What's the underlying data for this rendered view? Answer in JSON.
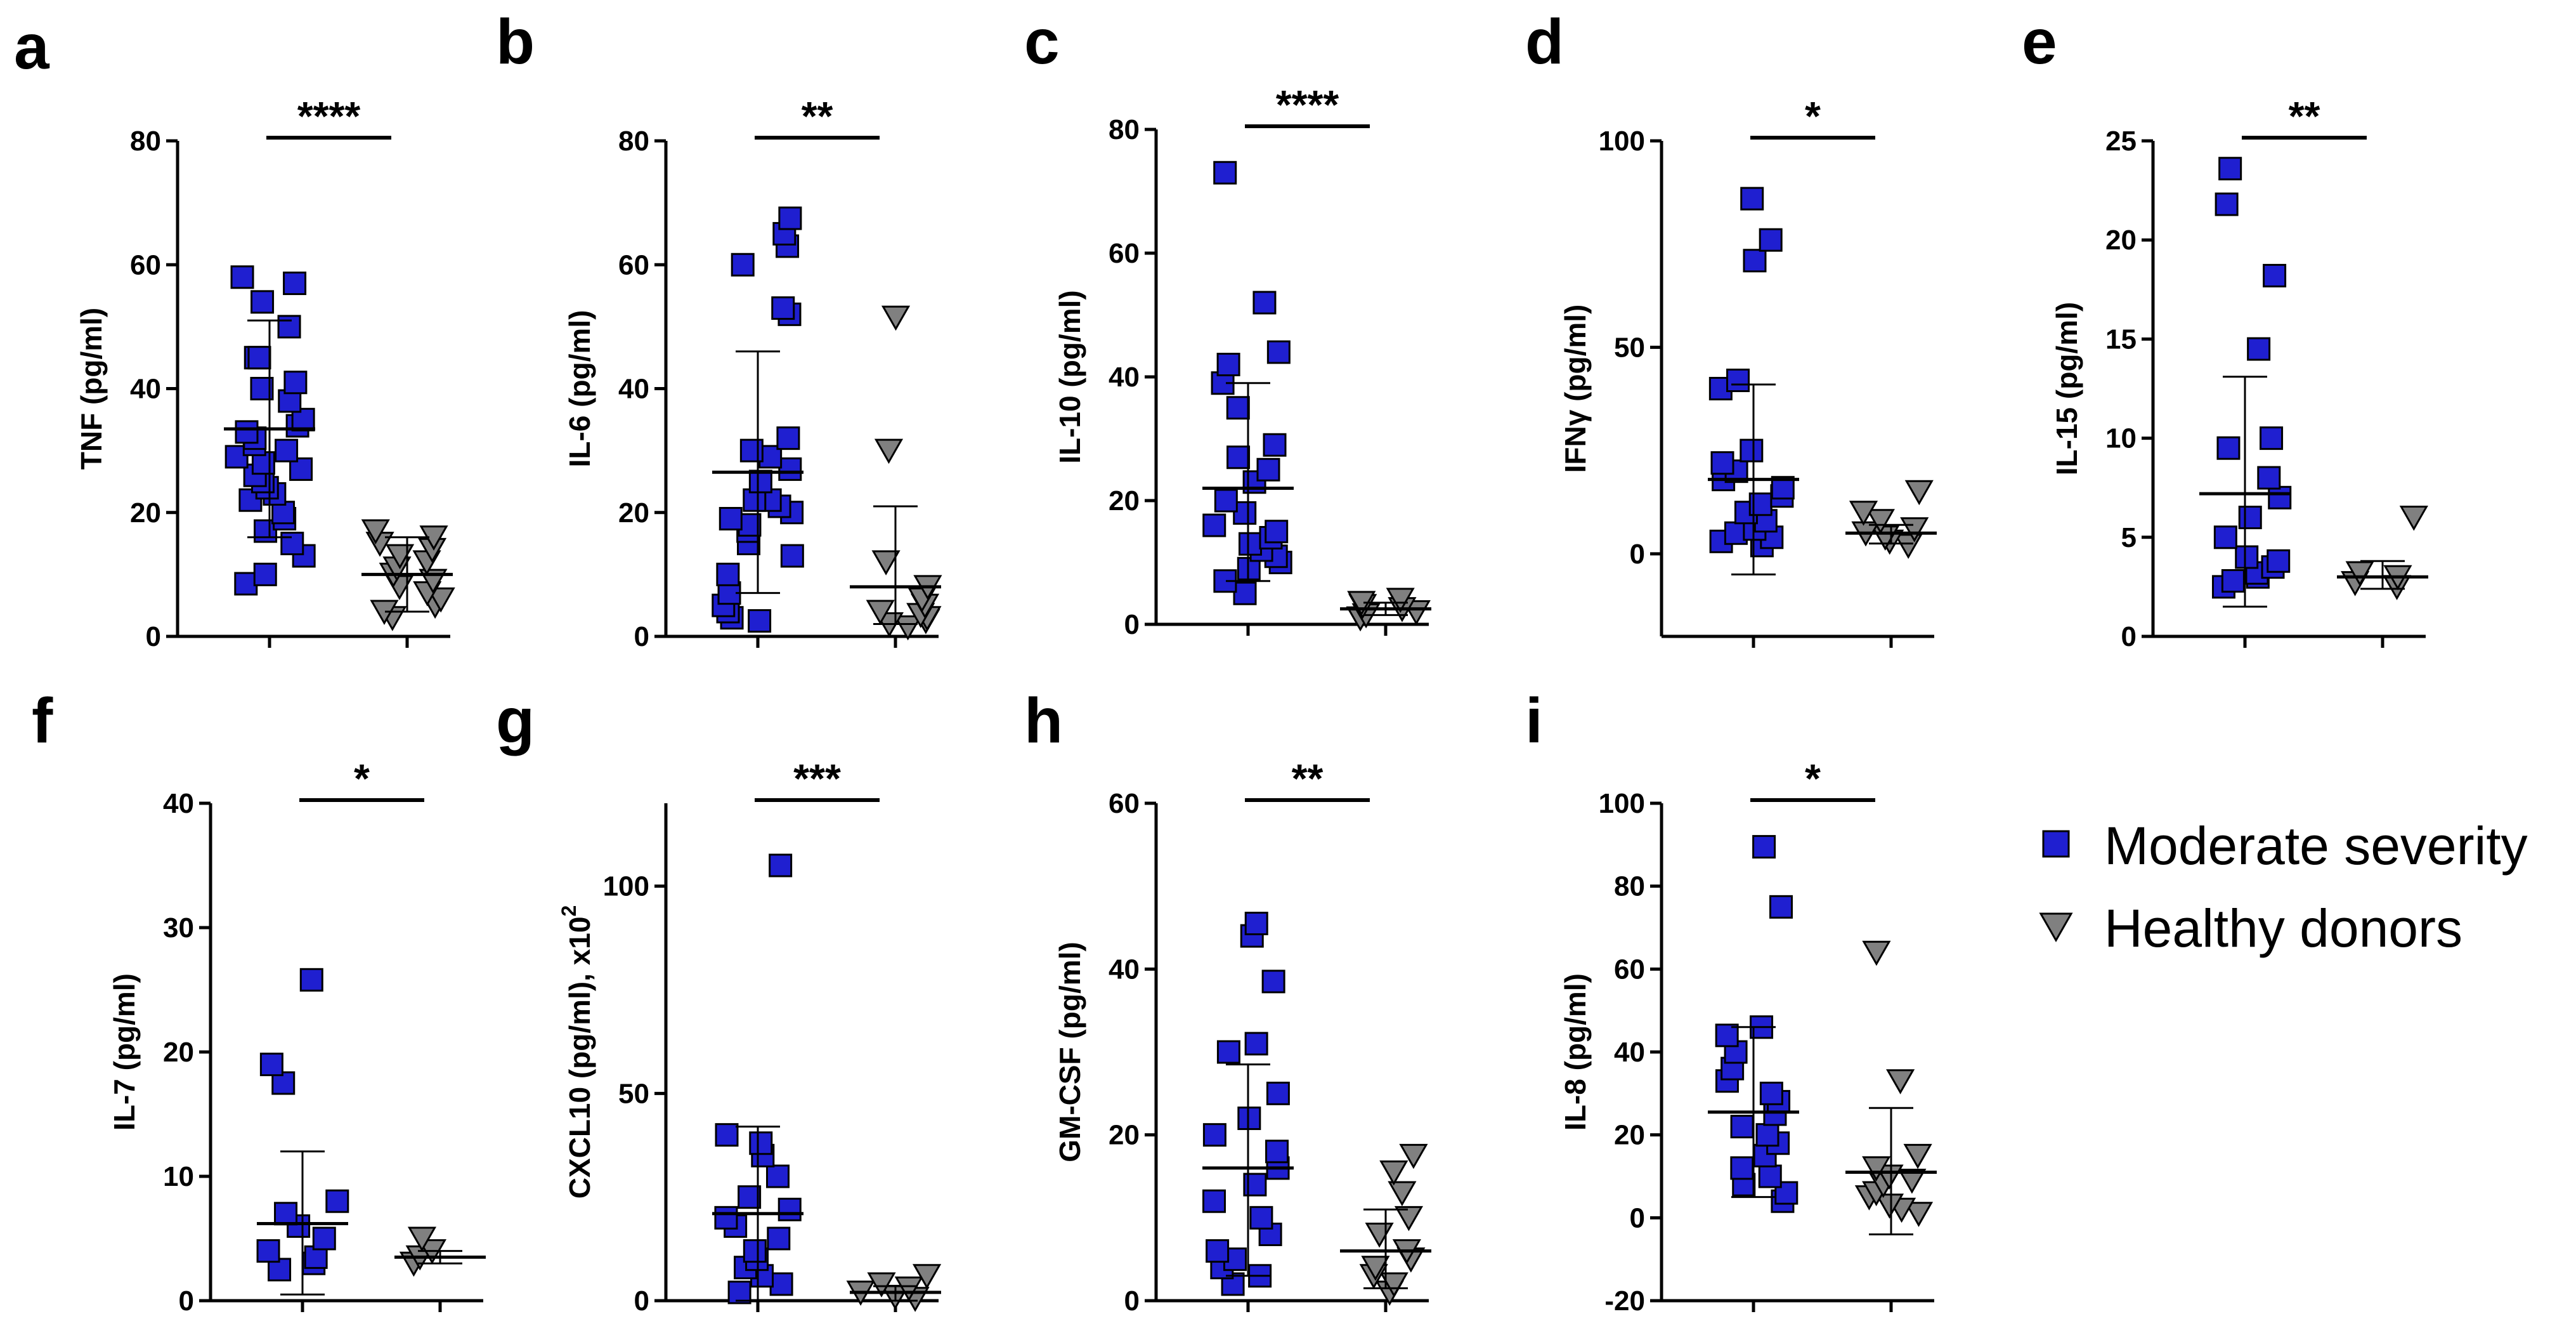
{
  "figure": {
    "legend": [
      {
        "label": "Moderate severity",
        "marker": "square",
        "color": "#1f1fd0"
      },
      {
        "label": "Healthy donors",
        "marker": "triangle-down",
        "color": "#808080"
      }
    ]
  },
  "chart_data": [
    {
      "panel": "a",
      "type": "scatter",
      "ylabel": "TNF (pg/ml)",
      "ylim": [
        0,
        80
      ],
      "yticks": [
        "0",
        "20",
        "40",
        "60",
        "80"
      ],
      "significance": "****",
      "series": [
        {
          "name": "Moderate severity",
          "mean": 33.5,
          "sd_low": 16,
          "sd_high": 51,
          "values": [
            8.5,
            10,
            13,
            15,
            17,
            19,
            20,
            22,
            23,
            24,
            25,
            26,
            27,
            28,
            29,
            30,
            31,
            32,
            33,
            34,
            35,
            38,
            40,
            41,
            45,
            45,
            50,
            54,
            57,
            58
          ]
        },
        {
          "name": "Healthy donors",
          "mean": 10,
          "sd_low": 4,
          "sd_high": 16,
          "values": [
            3,
            4,
            5,
            6,
            7,
            8,
            9,
            10,
            11,
            12,
            13,
            14,
            15,
            16,
            17
          ]
        }
      ]
    },
    {
      "panel": "b",
      "type": "scatter",
      "ylabel": "IL-6 (pg/ml)",
      "ylim": [
        0,
        80
      ],
      "yticks": [
        "0",
        "20",
        "40",
        "60",
        "80"
      ],
      "significance": "**",
      "series": [
        {
          "name": "Moderate severity",
          "mean": 26.5,
          "sd_low": 7,
          "sd_high": 46,
          "values": [
            2.5,
            3,
            4,
            5,
            7,
            10,
            13,
            15,
            17,
            18,
            19,
            20,
            21,
            22,
            22,
            25,
            27,
            29,
            30,
            32,
            52,
            53,
            60,
            63,
            65,
            67.5
          ]
        },
        {
          "name": "Healthy donors",
          "mean": 8,
          "sd_low": 2,
          "sd_high": 21,
          "values": [
            1.5,
            2,
            2.5,
            3,
            3.5,
            4,
            5,
            6,
            8,
            12,
            30,
            51.5
          ]
        }
      ]
    },
    {
      "panel": "c",
      "type": "scatter",
      "ylabel": "IL-10 (pg/ml)",
      "ylim": [
        0,
        80
      ],
      "yticks": [
        "0",
        "20",
        "40",
        "60",
        "80"
      ],
      "significance": "****",
      "series": [
        {
          "name": "Moderate severity",
          "mean": 22,
          "sd_low": 7,
          "sd_high": 39,
          "values": [
            5,
            7,
            9,
            10,
            11,
            12,
            13,
            14,
            15,
            16,
            18,
            20,
            23,
            25,
            27,
            29,
            35,
            39,
            42,
            44,
            52,
            73
          ]
        },
        {
          "name": "Healthy donors",
          "mean": 2.5,
          "sd_low": 1.5,
          "sd_high": 3.5,
          "values": [
            1,
            1.5,
            2,
            2.5,
            3,
            3.5,
            4
          ]
        }
      ]
    },
    {
      "panel": "d",
      "type": "scatter",
      "ylabel": "IFNγ (pg/ml)",
      "ylim": [
        -20,
        100
      ],
      "yticks": [
        "0",
        "50",
        "100"
      ],
      "significance": "*",
      "series": [
        {
          "name": "Moderate severity",
          "mean": 18,
          "sd_low": -5,
          "sd_high": 41,
          "values": [
            2,
            3,
            4,
            5,
            6,
            8,
            10,
            12,
            14,
            16,
            18,
            20,
            22,
            25,
            40,
            42,
            71,
            76,
            86
          ]
        },
        {
          "name": "Healthy donors",
          "mean": 5,
          "sd_low": 2.5,
          "sd_high": 7,
          "values": [
            2,
            3,
            4,
            5,
            6,
            8,
            10,
            15
          ]
        }
      ]
    },
    {
      "panel": "e",
      "type": "scatter",
      "ylabel": "IL-15 (pg/ml)",
      "ylim": [
        0,
        25
      ],
      "yticks": [
        "0",
        "5",
        "10",
        "15",
        "20",
        "25"
      ],
      "significance": "**",
      "series": [
        {
          "name": "Moderate severity",
          "mean": 7.2,
          "sd_low": 1.5,
          "sd_high": 13.1,
          "values": [
            2.5,
            2.8,
            3,
            3.2,
            3.5,
            3.8,
            4,
            5,
            6,
            7,
            8,
            9.5,
            10,
            14.5,
            18.2,
            21.8,
            23.6
          ]
        },
        {
          "name": "Healthy donors",
          "mean": 3,
          "sd_low": 2.4,
          "sd_high": 3.8,
          "values": [
            2.5,
            2.7,
            3,
            3.2,
            6
          ]
        }
      ]
    },
    {
      "panel": "f",
      "type": "scatter",
      "ylabel": "IL-7 (pg/ml)",
      "ylim": [
        0,
        40
      ],
      "yticks": [
        "0",
        "10",
        "20",
        "30",
        "40"
      ],
      "significance": "*",
      "series": [
        {
          "name": "Moderate severity",
          "mean": 6.2,
          "sd_low": 0.5,
          "sd_high": 12,
          "values": [
            2.5,
            3,
            3.5,
            4,
            5,
            6,
            7,
            8,
            17.5,
            19,
            25.8
          ]
        },
        {
          "name": "Healthy donors",
          "mean": 3.5,
          "sd_low": 3,
          "sd_high": 4,
          "values": [
            3,
            3.5,
            4,
            5
          ]
        }
      ]
    },
    {
      "panel": "g",
      "type": "scatter",
      "ylabel": "CXCL10 (pg/ml), x10²",
      "ylim": [
        0,
        120
      ],
      "yticks": [
        "0",
        "50",
        "100"
      ],
      "significance": "***",
      "series": [
        {
          "name": "Moderate severity",
          "mean": 21,
          "sd_low": 0,
          "sd_high": 42,
          "values": [
            2,
            4,
            6,
            8,
            10,
            12,
            15,
            18,
            20,
            22,
            25,
            30,
            35,
            38,
            40,
            105
          ]
        },
        {
          "name": "Healthy donors",
          "mean": 2,
          "sd_low": 0,
          "sd_high": 3.5,
          "values": [
            0.5,
            1,
            2,
            3,
            4,
            6
          ]
        }
      ]
    },
    {
      "panel": "h",
      "type": "scatter",
      "ylabel": "GM-CSF (pg/ml)",
      "ylim": [
        0,
        60
      ],
      "yticks": [
        "0",
        "20",
        "40",
        "60"
      ],
      "significance": "**",
      "series": [
        {
          "name": "Moderate severity",
          "mean": 16,
          "sd_low": 3,
          "sd_high": 28.5,
          "values": [
            2,
            3,
            4,
            5,
            6,
            8,
            10,
            12,
            14,
            16,
            18,
            20,
            22,
            25,
            30,
            31,
            38.5,
            44,
            45.5
          ]
        },
        {
          "name": "Healthy donors",
          "mean": 6,
          "sd_low": 1.5,
          "sd_high": 11,
          "values": [
            1,
            2,
            3,
            4,
            5,
            6,
            8,
            10,
            13,
            15.5,
            17.5
          ]
        }
      ]
    },
    {
      "panel": "i",
      "type": "scatter",
      "ylabel": "IL-8 (pg/ml)",
      "ylim": [
        -20,
        100
      ],
      "yticks": [
        "-20",
        "0",
        "20",
        "40",
        "60",
        "80",
        "100"
      ],
      "significance": "*",
      "series": [
        {
          "name": "Moderate severity",
          "mean": 25.5,
          "sd_low": 5,
          "sd_high": 46,
          "values": [
            4,
            6,
            8,
            10,
            12,
            15,
            18,
            20,
            22,
            25,
            28,
            30,
            33,
            36,
            40,
            44,
            46,
            75,
            89.5
          ]
        },
        {
          "name": "Healthy donors",
          "mean": 11,
          "sd_low": -4,
          "sd_high": 26.5,
          "values": [
            1,
            2,
            3,
            5,
            6,
            8,
            9,
            10,
            12,
            15,
            33,
            64
          ]
        }
      ]
    }
  ]
}
